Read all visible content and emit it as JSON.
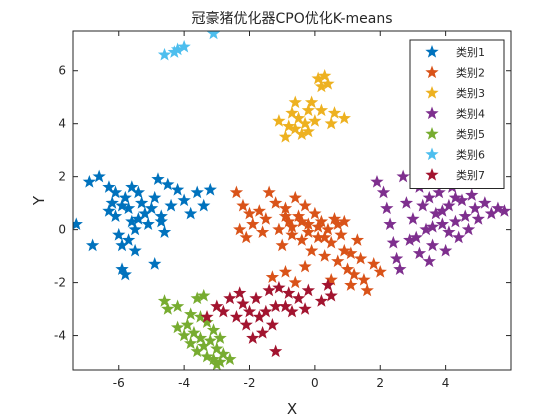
{
  "chart_data": {
    "type": "scatter",
    "title": "冠豪猪优化器CPO优化K-means",
    "xlabel": "X",
    "ylabel": "Y",
    "xlim": [
      -7.4,
      6.0
    ],
    "ylim": [
      -5.3,
      7.5
    ],
    "xticks": [
      -6,
      -4,
      -2,
      0,
      2,
      4
    ],
    "yticks": [
      -4,
      -2,
      0,
      2,
      4,
      6
    ],
    "xtick_labels": [
      "-6",
      "-4",
      "-2",
      "0",
      "2",
      "4"
    ],
    "ytick_labels": [
      "-4",
      "-2",
      "0",
      "2",
      "4",
      "6"
    ],
    "grid": false,
    "marker": "star",
    "legend_position": "top-right",
    "series": [
      {
        "name": "类别1",
        "color": "#0072BD",
        "points": [
          [
            -7.3,
            0.2
          ],
          [
            -6.9,
            1.8
          ],
          [
            -6.6,
            2.0
          ],
          [
            -6.3,
            1.6
          ],
          [
            -6.2,
            1.0
          ],
          [
            -6.1,
            0.5
          ],
          [
            -6.0,
            -0.2
          ],
          [
            -5.9,
            -0.6
          ],
          [
            -6.1,
            1.4
          ],
          [
            -5.8,
            1.2
          ],
          [
            -5.7,
            0.8
          ],
          [
            -5.6,
            0.3
          ],
          [
            -5.5,
            0.0
          ],
          [
            -5.9,
            -1.5
          ],
          [
            -5.8,
            -1.7
          ],
          [
            -5.7,
            -0.4
          ],
          [
            -5.6,
            1.6
          ],
          [
            -5.4,
            1.4
          ],
          [
            -5.3,
            1.0
          ],
          [
            -5.2,
            0.6
          ],
          [
            -5.1,
            0.2
          ],
          [
            -5.0,
            0.8
          ],
          [
            -4.9,
            1.2
          ],
          [
            -4.8,
            1.9
          ],
          [
            -4.7,
            0.5
          ],
          [
            -4.6,
            -0.1
          ],
          [
            -4.5,
            1.7
          ],
          [
            -4.4,
            0.9
          ],
          [
            -4.2,
            1.5
          ],
          [
            -4.0,
            1.1
          ],
          [
            -3.8,
            0.6
          ],
          [
            -3.6,
            1.4
          ],
          [
            -3.4,
            0.9
          ],
          [
            -3.2,
            1.5
          ],
          [
            -4.9,
            -1.3
          ],
          [
            -6.8,
            -0.6
          ],
          [
            -5.5,
            -0.8
          ],
          [
            -6.3,
            0.7
          ],
          [
            -5.9,
            0.9
          ],
          [
            -5.4,
            0.4
          ],
          [
            -4.7,
            0.3
          ]
        ]
      },
      {
        "name": "类别2",
        "color": "#D95319",
        "points": [
          [
            -2.4,
            1.4
          ],
          [
            -2.2,
            0.9
          ],
          [
            -2.0,
            0.6
          ],
          [
            -2.3,
            0.0
          ],
          [
            -2.1,
            -0.3
          ],
          [
            -1.9,
            0.2
          ],
          [
            -1.7,
            0.7
          ],
          [
            -1.5,
            0.4
          ],
          [
            -1.4,
            1.4
          ],
          [
            -1.2,
            1.0
          ],
          [
            -1.1,
            0.0
          ],
          [
            -1.0,
            -0.6
          ],
          [
            -0.9,
            0.8
          ],
          [
            -0.8,
            0.3
          ],
          [
            -0.7,
            -0.2
          ],
          [
            -0.6,
            1.2
          ],
          [
            -0.5,
            0.5
          ],
          [
            -0.4,
            -0.4
          ],
          [
            -0.3,
            0.9
          ],
          [
            -0.2,
            0.2
          ],
          [
            -0.1,
            -0.8
          ],
          [
            0.0,
            0.6
          ],
          [
            0.1,
            -0.3
          ],
          [
            0.2,
            0.3
          ],
          [
            0.3,
            -1.0
          ],
          [
            0.4,
            0.0
          ],
          [
            0.5,
            -0.5
          ],
          [
            0.6,
            0.4
          ],
          [
            0.7,
            -1.2
          ],
          [
            0.8,
            -0.2
          ],
          [
            0.9,
            -0.8
          ],
          [
            1.0,
            -1.5
          ],
          [
            1.1,
            -2.1
          ],
          [
            1.2,
            -1.7
          ],
          [
            1.3,
            -0.4
          ],
          [
            1.4,
            -1.1
          ],
          [
            1.5,
            -1.9
          ],
          [
            1.6,
            -2.3
          ],
          [
            1.8,
            -1.3
          ],
          [
            2.0,
            -1.6
          ],
          [
            -1.3,
            -1.8
          ],
          [
            -0.9,
            -1.6
          ],
          [
            -0.6,
            -2.0
          ],
          [
            -0.3,
            -1.4
          ],
          [
            0.5,
            -1.9
          ],
          [
            -0.7,
            0.1
          ],
          [
            -0.4,
            0.3
          ],
          [
            -0.2,
            -0.1
          ],
          [
            0.1,
            0.1
          ],
          [
            0.3,
            -0.3
          ],
          [
            -0.9,
            0.5
          ],
          [
            -1.6,
            -0.1
          ],
          [
            0.7,
            0.2
          ],
          [
            0.9,
            0.3
          ],
          [
            1.1,
            -0.9
          ]
        ]
      },
      {
        "name": "类别3",
        "color": "#EDB120",
        "points": [
          [
            -1.1,
            4.1
          ],
          [
            -0.9,
            3.5
          ],
          [
            -0.8,
            3.9
          ],
          [
            -0.7,
            4.4
          ],
          [
            -0.6,
            3.8
          ],
          [
            -0.5,
            4.2
          ],
          [
            -0.4,
            3.6
          ],
          [
            -0.3,
            4.0
          ],
          [
            -0.2,
            4.5
          ],
          [
            -0.1,
            4.8
          ],
          [
            0.0,
            4.1
          ],
          [
            0.1,
            5.7
          ],
          [
            0.2,
            5.4
          ],
          [
            0.3,
            5.8
          ],
          [
            0.4,
            5.5
          ],
          [
            0.2,
            4.5
          ],
          [
            0.6,
            4.4
          ],
          [
            0.9,
            4.2
          ],
          [
            -0.6,
            4.8
          ],
          [
            -0.2,
            3.7
          ],
          [
            0.5,
            4.0
          ]
        ]
      },
      {
        "name": "类别4",
        "color": "#7E2F8E",
        "points": [
          [
            1.9,
            1.8
          ],
          [
            2.1,
            1.4
          ],
          [
            2.2,
            0.8
          ],
          [
            2.3,
            0.2
          ],
          [
            2.4,
            -0.5
          ],
          [
            2.5,
            -1.1
          ],
          [
            2.6,
            -1.5
          ],
          [
            2.8,
            1.0
          ],
          [
            3.0,
            0.4
          ],
          [
            3.1,
            -0.3
          ],
          [
            3.2,
            1.6
          ],
          [
            3.3,
            0.9
          ],
          [
            3.4,
            0.0
          ],
          [
            3.5,
            1.2
          ],
          [
            3.6,
            -0.6
          ],
          [
            3.7,
            0.6
          ],
          [
            3.8,
            1.4
          ],
          [
            3.9,
            0.2
          ],
          [
            4.0,
            -0.8
          ],
          [
            4.1,
            0.9
          ],
          [
            4.2,
            1.6
          ],
          [
            4.3,
            0.3
          ],
          [
            4.4,
            -0.3
          ],
          [
            4.5,
            1.1
          ],
          [
            4.6,
            0.5
          ],
          [
            4.7,
            0.0
          ],
          [
            4.8,
            1.3
          ],
          [
            4.9,
            0.8
          ],
          [
            5.0,
            0.4
          ],
          [
            5.2,
            1.0
          ],
          [
            5.4,
            0.6
          ],
          [
            5.6,
            0.8
          ],
          [
            5.8,
            0.7
          ],
          [
            4.7,
            1.8
          ],
          [
            4.4,
            2.3
          ],
          [
            3.7,
            2.1
          ],
          [
            2.7,
            2.0
          ],
          [
            3.2,
            -0.9
          ],
          [
            3.5,
            -1.2
          ],
          [
            4.1,
            -0.1
          ],
          [
            2.9,
            -0.4
          ],
          [
            3.9,
            0.7
          ],
          [
            4.3,
            1.2
          ],
          [
            3.6,
            0.1
          ]
        ]
      },
      {
        "name": "类别5",
        "color": "#77AC30",
        "points": [
          [
            -4.6,
            -2.7
          ],
          [
            -4.5,
            -3.0
          ],
          [
            -4.2,
            -2.9
          ],
          [
            -3.6,
            -2.6
          ],
          [
            -3.4,
            -2.5
          ],
          [
            -4.2,
            -3.7
          ],
          [
            -4.0,
            -4.0
          ],
          [
            -3.9,
            -3.6
          ],
          [
            -3.8,
            -4.3
          ],
          [
            -3.7,
            -3.9
          ],
          [
            -3.6,
            -4.6
          ],
          [
            -3.5,
            -4.1
          ],
          [
            -3.4,
            -4.4
          ],
          [
            -3.3,
            -4.8
          ],
          [
            -3.2,
            -4.2
          ],
          [
            -3.1,
            -4.9
          ],
          [
            -3.0,
            -4.5
          ],
          [
            -2.9,
            -5.0
          ],
          [
            -2.8,
            -4.7
          ],
          [
            -2.6,
            -4.9
          ],
          [
            -3.3,
            -3.5
          ],
          [
            -3.5,
            -3.3
          ],
          [
            -3.8,
            -3.2
          ],
          [
            -3.1,
            -3.8
          ],
          [
            -2.9,
            -4.1
          ],
          [
            -3.0,
            -5.1
          ]
        ]
      },
      {
        "name": "类别6",
        "color": "#4DBEEE",
        "points": [
          [
            -4.6,
            6.6
          ],
          [
            -4.3,
            6.7
          ],
          [
            -4.2,
            6.8
          ],
          [
            -4.0,
            6.9
          ],
          [
            -3.1,
            7.4
          ]
        ]
      },
      {
        "name": "类别7",
        "color": "#A2142F",
        "points": [
          [
            -3.3,
            -3.3
          ],
          [
            -3.0,
            -2.9
          ],
          [
            -2.8,
            -3.1
          ],
          [
            -2.6,
            -2.6
          ],
          [
            -2.4,
            -3.3
          ],
          [
            -2.2,
            -2.8
          ],
          [
            -2.1,
            -3.6
          ],
          [
            -2.0,
            -3.1
          ],
          [
            -1.8,
            -2.6
          ],
          [
            -1.7,
            -3.3
          ],
          [
            -1.6,
            -3.9
          ],
          [
            -1.5,
            -3.1
          ],
          [
            -1.4,
            -2.3
          ],
          [
            -1.3,
            -3.6
          ],
          [
            -1.2,
            -4.6
          ],
          [
            -1.1,
            -2.2
          ],
          [
            -0.9,
            -2.9
          ],
          [
            -0.8,
            -2.4
          ],
          [
            -0.7,
            -3.1
          ],
          [
            -0.5,
            -2.6
          ],
          [
            -0.3,
            -3.0
          ],
          [
            -0.2,
            -2.3
          ],
          [
            0.2,
            -2.7
          ],
          [
            0.4,
            -2.1
          ],
          [
            0.5,
            -2.5
          ],
          [
            -1.9,
            -4.1
          ],
          [
            -2.3,
            -2.4
          ],
          [
            -1.2,
            -2.9
          ]
        ]
      }
    ]
  }
}
